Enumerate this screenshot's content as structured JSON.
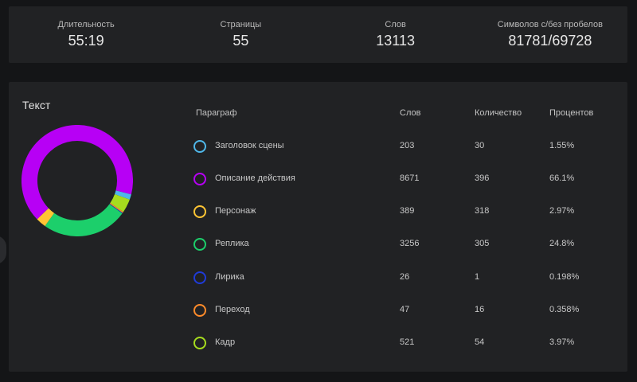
{
  "stats": [
    {
      "label": "Длительность",
      "value": "55:19"
    },
    {
      "label": "Страницы",
      "value": "55"
    },
    {
      "label": "Слов",
      "value": "13113"
    },
    {
      "label": "Символов с/без пробелов",
      "value": "81781/69728"
    }
  ],
  "text_panel": {
    "title": "Текст",
    "headers": {
      "paragraph": "Параграф",
      "words": "Слов",
      "count": "Количество",
      "percent": "Процентов"
    },
    "rows": [
      {
        "name": "Заголовок сцены",
        "words": "203",
        "count": "30",
        "percent": "1.55%",
        "color": "#4fb7e8",
        "share": 1.55
      },
      {
        "name": "Описание действия",
        "words": "8671",
        "count": "396",
        "percent": "66.1%",
        "color": "#b700f5",
        "share": 66.1
      },
      {
        "name": "Персонаж",
        "words": "389",
        "count": "318",
        "percent": "2.97%",
        "color": "#ffc534",
        "share": 2.97
      },
      {
        "name": "Реплика",
        "words": "3256",
        "count": "305",
        "percent": "24.8%",
        "color": "#1ccf6b",
        "share": 24.8
      },
      {
        "name": "Лирика",
        "words": "26",
        "count": "1",
        "percent": "0.198%",
        "color": "#1f3bd8",
        "share": 0.198
      },
      {
        "name": "Переход",
        "words": "47",
        "count": "16",
        "percent": "0.358%",
        "color": "#ff8b2a",
        "share": 0.358
      },
      {
        "name": "Кадр",
        "words": "521",
        "count": "54",
        "percent": "3.97%",
        "color": "#a6dc1e",
        "share": 3.97
      }
    ]
  }
}
